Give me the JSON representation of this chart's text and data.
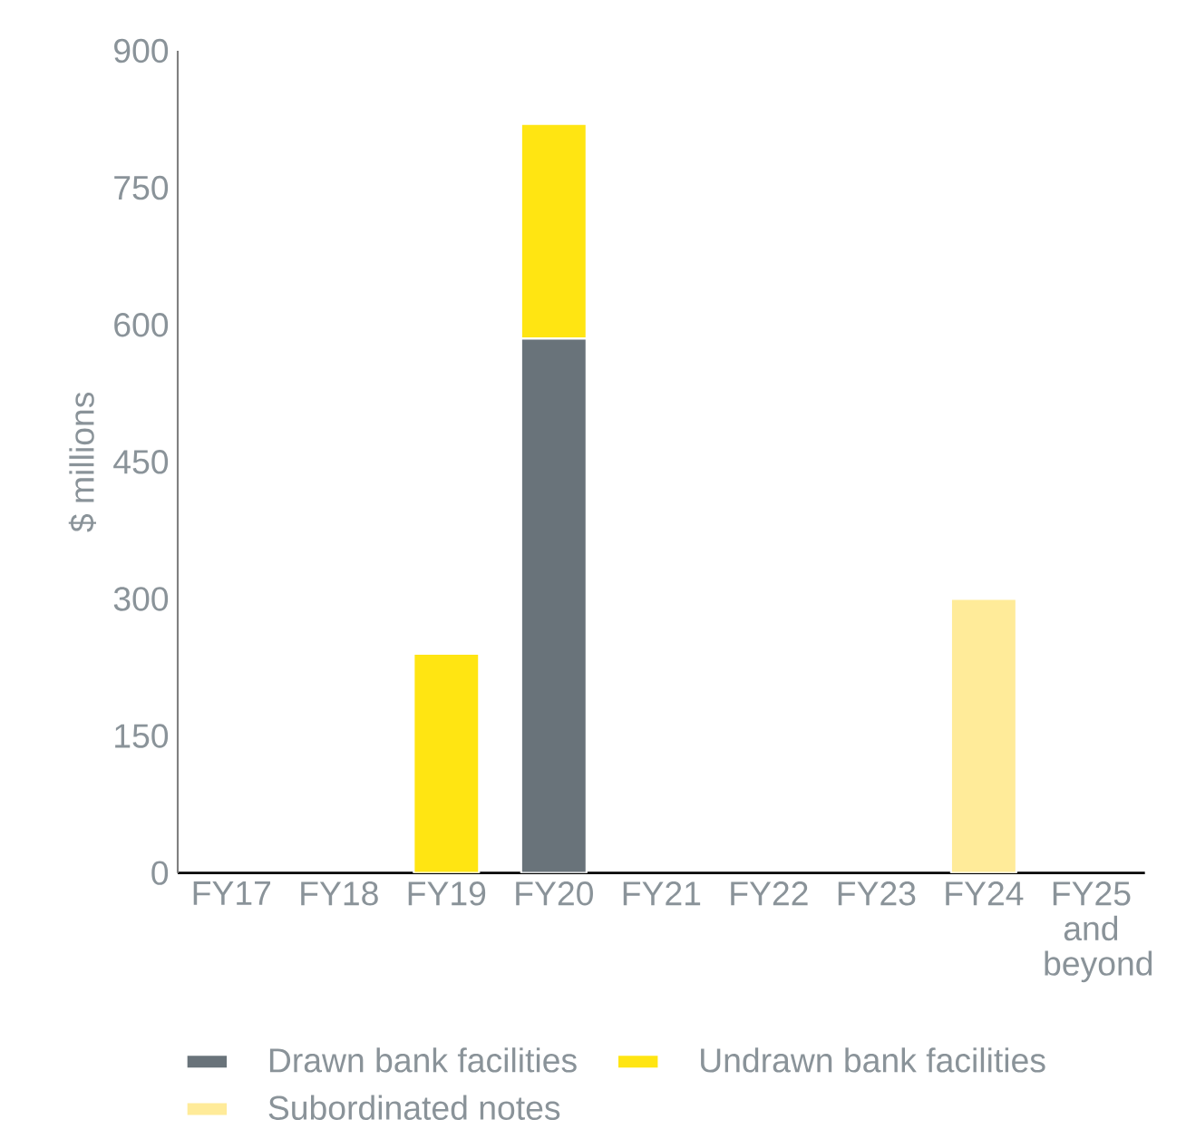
{
  "chart_data": {
    "type": "bar",
    "stacked": true,
    "ylabel": "$ millions",
    "categories": [
      "FY17",
      "FY18",
      "FY19",
      "FY20",
      "FY21",
      "FY22",
      "FY23",
      "FY24",
      "FY25 and beyond"
    ],
    "series": [
      {
        "name": "Drawn bank facilities",
        "color": "#69737a",
        "values": [
          0,
          0,
          0,
          585,
          0,
          0,
          0,
          0,
          0
        ]
      },
      {
        "name": "Undrawn bank facilities",
        "color": "#ffe512",
        "values": [
          0,
          0,
          240,
          235,
          0,
          0,
          0,
          0,
          0
        ]
      },
      {
        "name": "Subordinated notes",
        "color": "#ffeb99",
        "values": [
          0,
          0,
          0,
          0,
          0,
          0,
          0,
          300,
          0
        ]
      }
    ],
    "ylim": [
      0,
      900
    ],
    "yticks": [
      0,
      150,
      300,
      450,
      600,
      750,
      900
    ],
    "grid": false,
    "legend": "bottom"
  }
}
